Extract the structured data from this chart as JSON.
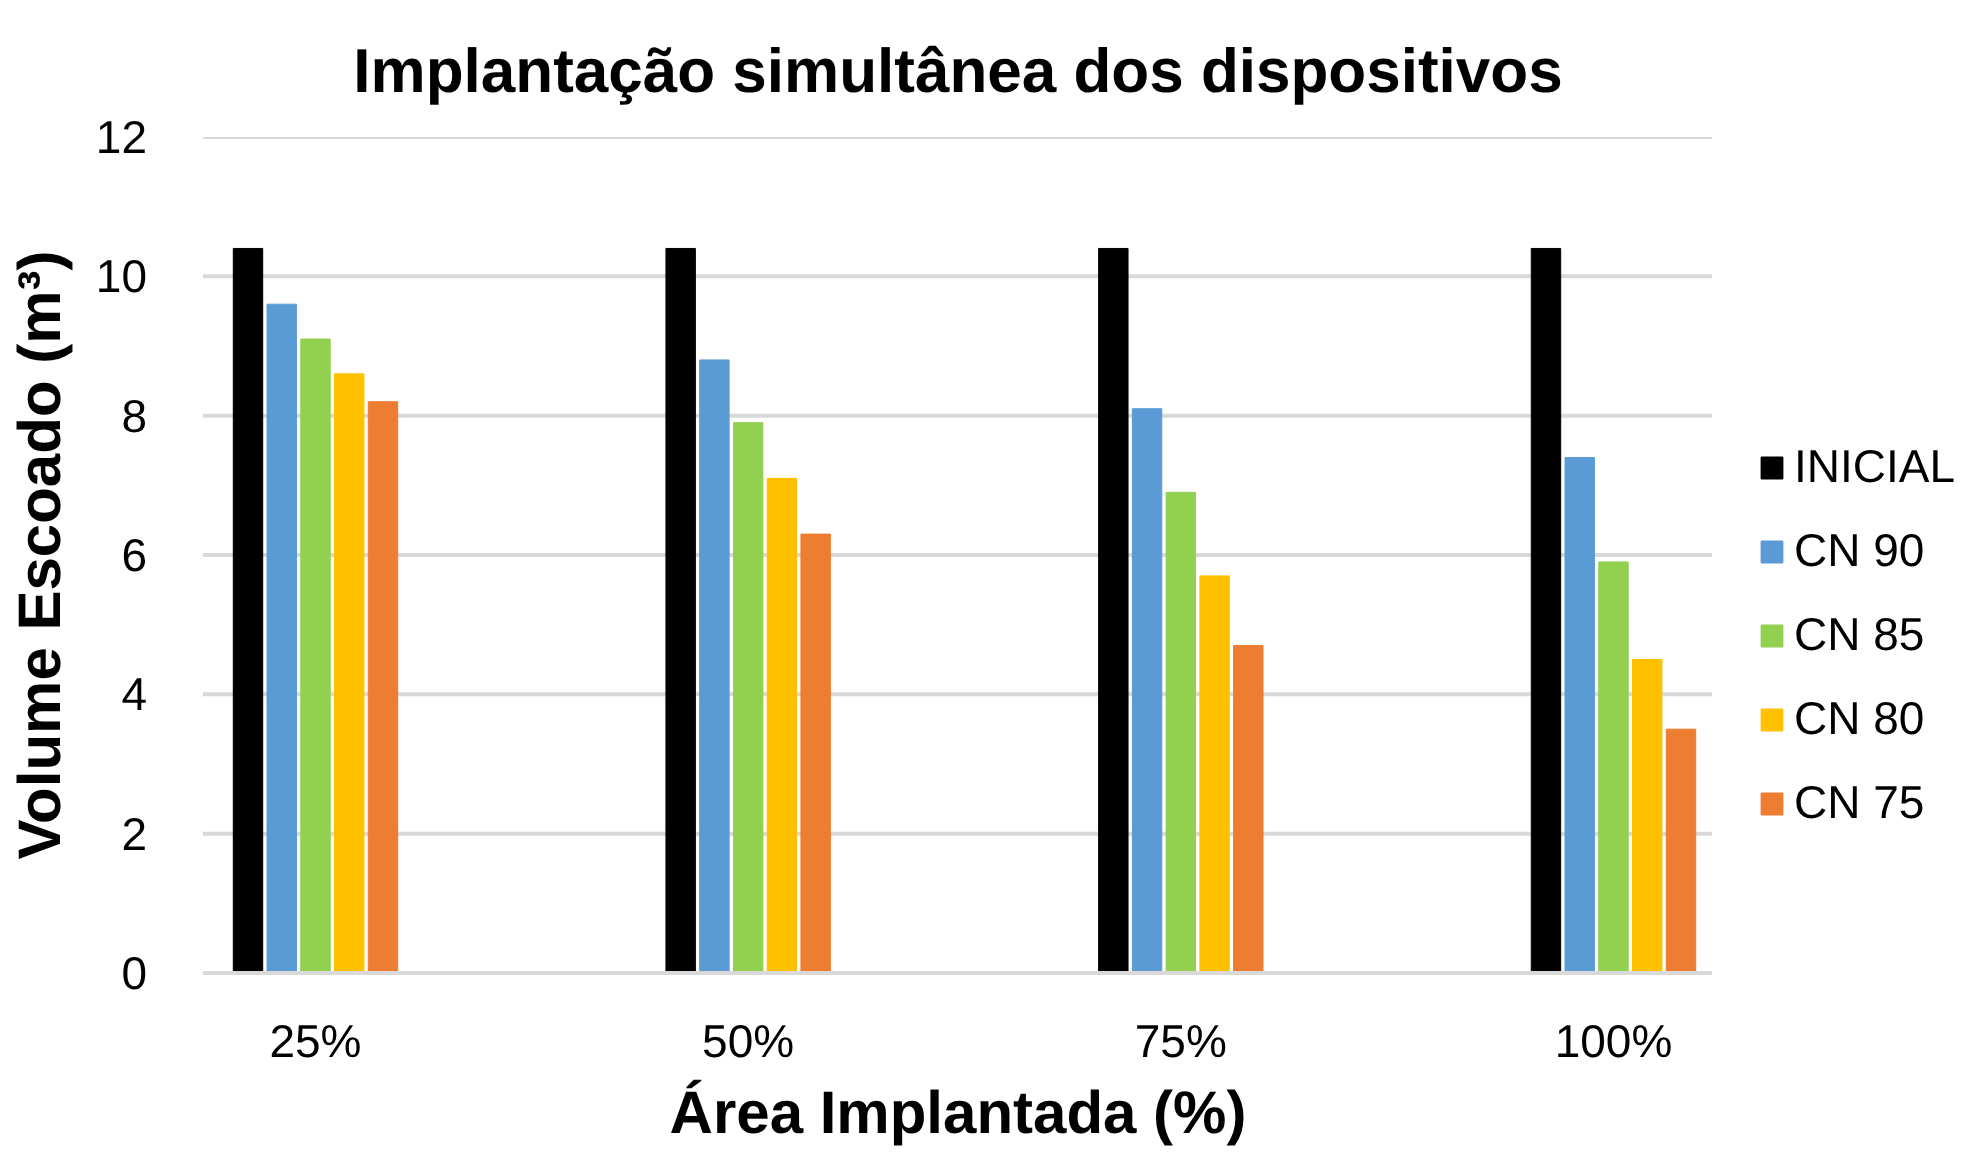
{
  "chart_data": {
    "type": "bar",
    "title": "Implantação simultânea dos dispositivos",
    "xlabel": "Área Implantada (%)",
    "ylabel": "Volume Escoado (m³)",
    "categories": [
      "25%",
      "50%",
      "75%",
      "100%"
    ],
    "series": [
      {
        "name": "INICIAL",
        "color": "#000000",
        "values": [
          10.4,
          10.4,
          10.4,
          10.4
        ]
      },
      {
        "name": "CN 90",
        "color": "#5b9bd5",
        "values": [
          9.6,
          8.8,
          8.1,
          7.4
        ]
      },
      {
        "name": "CN 85",
        "color": "#92d050",
        "values": [
          9.1,
          7.9,
          6.9,
          5.9
        ]
      },
      {
        "name": "CN 80",
        "color": "#ffc000",
        "values": [
          8.6,
          7.1,
          5.7,
          4.5
        ]
      },
      {
        "name": "CN 75",
        "color": "#ed7d31",
        "values": [
          8.2,
          6.3,
          4.7,
          3.5
        ]
      }
    ],
    "ylim": [
      0,
      12
    ],
    "yticks": [
      0,
      2,
      4,
      6,
      8,
      10,
      12
    ],
    "grid": "y",
    "legend": "right"
  }
}
